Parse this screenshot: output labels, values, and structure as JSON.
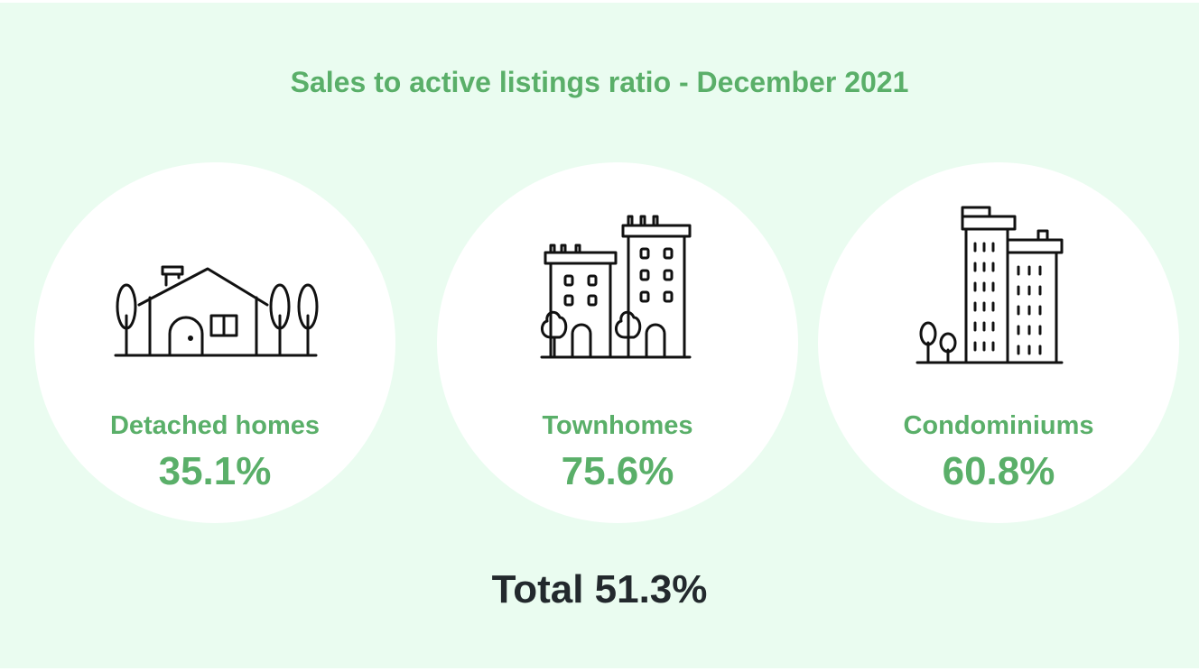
{
  "title": "Sales to active listings ratio - December 2021",
  "categories": [
    {
      "label": "Detached homes",
      "value": "35.1%",
      "icon": "house-with-trees-icon"
    },
    {
      "label": "Townhomes",
      "value": "75.6%",
      "icon": "townhouse-buildings-icon"
    },
    {
      "label": "Condominiums",
      "value": "60.8%",
      "icon": "condo-towers-icon"
    }
  ],
  "total": "Total 51.3%",
  "colors": {
    "accent": "#5aaf69",
    "background": "#eafcf0",
    "circle": "#ffffff",
    "total_text": "#23292d"
  }
}
